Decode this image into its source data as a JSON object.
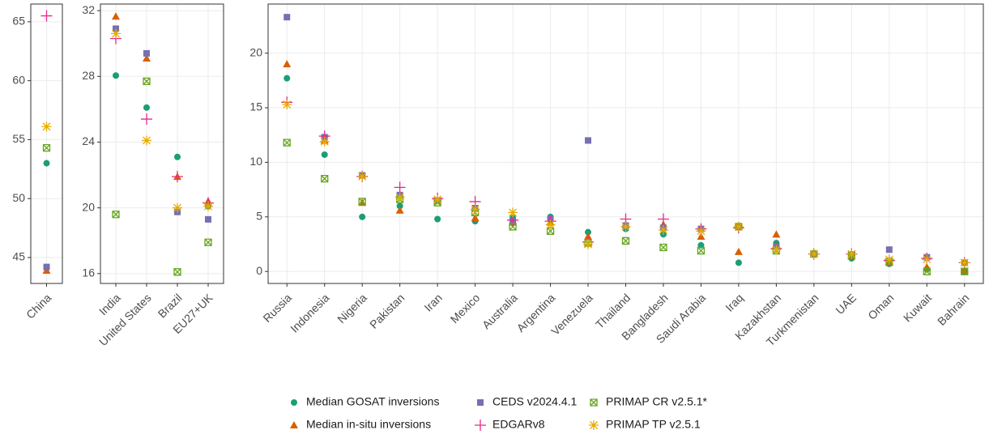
{
  "chart_data": [
    {
      "type": "scatter",
      "categories": [
        "China"
      ],
      "ylim": [
        42.8,
        66.5
      ],
      "yticks": [
        45,
        50,
        55,
        60,
        65
      ],
      "series": [
        {
          "name": "Median GOSAT inversions",
          "color": "#1b9e77",
          "marker": "circle",
          "values": [
            53.0
          ]
        },
        {
          "name": "Median in-situ inversions",
          "color": "#d95f02",
          "marker": "triangle",
          "values": [
            43.9
          ]
        },
        {
          "name": "CEDS v2024.4.1",
          "color": "#7570b3",
          "marker": "square",
          "values": [
            44.2
          ]
        },
        {
          "name": "EDGARv8",
          "color": "#e7298a",
          "marker": "plus",
          "values": [
            65.5
          ]
        },
        {
          "name": "PRIMAP CR v2.5.1*",
          "color": "#66a61e",
          "marker": "boxx",
          "values": [
            54.3
          ]
        },
        {
          "name": "PRIMAP TP v2.5.1",
          "color": "#e6ab02",
          "marker": "asterisk",
          "values": [
            56.1
          ]
        }
      ]
    },
    {
      "type": "scatter",
      "categories": [
        "India",
        "United States",
        "Brazil",
        "EU27+UK"
      ],
      "ylim": [
        15.4,
        32.4
      ],
      "yticks": [
        16,
        20,
        24,
        28,
        32
      ],
      "series": [
        {
          "values": [
            28.05,
            26.1,
            23.1,
            20.1
          ]
        },
        {
          "values": [
            31.65,
            29.1,
            21.9,
            20.4
          ]
        },
        {
          "values": [
            30.9,
            29.4,
            19.75,
            19.3
          ]
        },
        {
          "values": [
            30.3,
            25.4,
            21.9,
            20.3
          ]
        },
        {
          "values": [
            19.6,
            27.7,
            16.1,
            17.9
          ]
        },
        {
          "values": [
            30.6,
            24.1,
            20.0,
            20.1
          ]
        }
      ]
    },
    {
      "type": "scatter",
      "categories": [
        "Russia",
        "Indonesia",
        "Nigeria",
        "Pakistan",
        "Iran",
        "Mexico",
        "Australia",
        "Argentina",
        "Venezuela",
        "Thailand",
        "Bangladesh",
        "Saudi Arabia",
        "Iraq",
        "Kazakhstan",
        "Turkmenistan",
        "UAE",
        "Oman",
        "Kuwait",
        "Bahrain"
      ],
      "ylim": [
        -1.1,
        24.5
      ],
      "yticks": [
        0,
        5,
        10,
        15,
        20
      ],
      "series": [
        {
          "values": [
            17.7,
            10.7,
            5.0,
            6.0,
            4.8,
            4.6,
            4.9,
            5.0,
            3.6,
            3.9,
            3.4,
            2.4,
            0.8,
            2.6,
            1.6,
            1.2,
            0.7,
            0.2,
            0
          ]
        },
        {
          "values": [
            19.0,
            12.0,
            6.3,
            5.6,
            6.5,
            4.9,
            4.5,
            4.5,
            3.2,
            4.3,
            4.3,
            3.2,
            1.8,
            3.4,
            1.6,
            1.4,
            0.8,
            0.4,
            0.1
          ]
        },
        {
          "values": [
            23.3,
            12.3,
            8.8,
            7.0,
            6.5,
            5.8,
            4.6,
            4.8,
            12.0,
            4.2,
            4.0,
            3.9,
            4.1,
            2.3,
            1.6,
            1.5,
            2.0,
            1.3,
            0.8
          ]
        },
        {
          "values": [
            15.5,
            12.4,
            8.7,
            7.7,
            6.7,
            6.4,
            4.7,
            4.6,
            2.7,
            4.8,
            4.8,
            3.9,
            4.0,
            2.1,
            1.6,
            1.6,
            1.0,
            1.2,
            0.8
          ]
        },
        {
          "values": [
            11.8,
            8.5,
            6.4,
            6.6,
            6.3,
            5.4,
            4.1,
            3.7,
            2.6,
            2.8,
            2.2,
            1.9,
            4.1,
            1.9,
            1.6,
            1.5,
            0.9,
            0,
            0
          ]
        },
        {
          "values": [
            15.3,
            11.9,
            8.7,
            6.8,
            6.6,
            5.7,
            5.4,
            4.3,
            2.5,
            4.1,
            3.8,
            3.7,
            4.1,
            2.0,
            1.6,
            1.6,
            1.1,
            1.1,
            0.8
          ]
        }
      ]
    }
  ]
}
